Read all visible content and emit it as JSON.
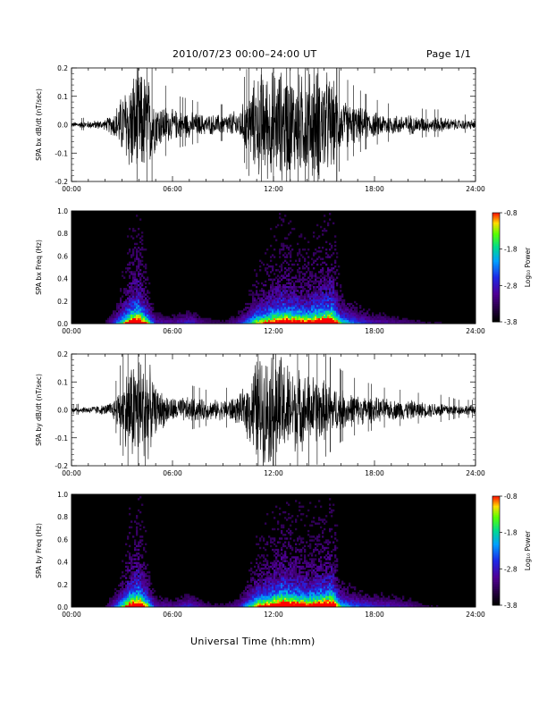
{
  "header": {
    "title": "2010/07/23  00:00–24:00 UT",
    "page": "Page 1/1"
  },
  "x_axis_title": "Universal Time (hh:mm)",
  "chart_data": [
    {
      "type": "line",
      "ylabel": "SPA bx dB/dt (nT/sec)",
      "xlim": [
        0,
        24
      ],
      "ylim": [
        -0.2,
        0.2
      ],
      "x_ticks": [
        "00:00",
        "06:00",
        "12:00",
        "18:00",
        "24:00"
      ],
      "y_ticks": [
        "-0.2",
        "-0.1",
        "0.0",
        "0.1",
        "0.2"
      ],
      "y_tick_values": [
        -0.2,
        -0.1,
        0.0,
        0.1,
        0.2
      ],
      "series": [
        {
          "x": [
            0,
            1,
            2,
            2.5,
            3,
            3.5,
            4,
            4.5,
            5,
            6,
            7,
            8,
            9,
            10,
            10.5,
            11,
            12,
            12.5,
            13,
            14,
            14.5,
            15,
            15.5,
            16,
            17,
            18,
            19,
            20,
            21,
            22,
            23,
            24
          ],
          "amplitude": [
            0.01,
            0.015,
            0.02,
            0.05,
            0.12,
            0.2,
            0.22,
            0.2,
            0.1,
            0.06,
            0.05,
            0.04,
            0.04,
            0.06,
            0.12,
            0.2,
            0.22,
            0.22,
            0.2,
            0.2,
            0.22,
            0.22,
            0.18,
            0.1,
            0.07,
            0.05,
            0.04,
            0.04,
            0.03,
            0.03,
            0.02,
            0.02
          ]
        }
      ]
    },
    {
      "type": "heatmap",
      "ylabel": "SPA bx Freq (Hz)",
      "xlim": [
        0,
        24
      ],
      "ylim": [
        0,
        1.0
      ],
      "x_ticks": [
        "00:00",
        "06:00",
        "12:00",
        "18:00",
        "24:00"
      ],
      "y_ticks": [
        "0.0",
        "0.2",
        "0.4",
        "0.6",
        "0.8",
        "1.0"
      ],
      "y_tick_values": [
        0,
        0.2,
        0.4,
        0.6,
        0.8,
        1.0
      ],
      "colorbar": {
        "label": "Log₁₀ Power",
        "ticks": [
          "-0.8",
          "-1.8",
          "-2.8",
          "-3.8"
        ],
        "tick_values": [
          -0.8,
          -1.8,
          -2.8,
          -3.8
        ],
        "range": [
          -3.8,
          -0.8
        ]
      },
      "activity": {
        "x": [
          0,
          2,
          2.5,
          3,
          3.5,
          4,
          4.5,
          5,
          6,
          7,
          8,
          9,
          10,
          10.5,
          11,
          12,
          12.5,
          13,
          14,
          15,
          15.5,
          16,
          17,
          18,
          19,
          20,
          21,
          22,
          23,
          24
        ],
        "level": [
          0.1,
          0.12,
          0.35,
          0.6,
          0.9,
          1.0,
          0.7,
          0.3,
          0.25,
          0.35,
          0.2,
          0.15,
          0.3,
          0.5,
          0.7,
          0.85,
          0.95,
          0.9,
          0.85,
          0.95,
          1.0,
          0.6,
          0.4,
          0.3,
          0.25,
          0.2,
          0.15,
          0.12,
          0.1,
          0.1
        ]
      }
    },
    {
      "type": "line",
      "ylabel": "SPA by dB/dt (nT/sec)",
      "xlim": [
        0,
        24
      ],
      "ylim": [
        -0.2,
        0.2
      ],
      "x_ticks": [
        "00:00",
        "06:00",
        "12:00",
        "18:00",
        "24:00"
      ],
      "y_ticks": [
        "-0.2",
        "-0.1",
        "0.0",
        "0.1",
        "0.2"
      ],
      "y_tick_values": [
        -0.2,
        -0.1,
        0.0,
        0.1,
        0.2
      ],
      "series": [
        {
          "x": [
            0,
            1,
            2,
            2.5,
            3,
            3.5,
            4,
            4.5,
            5,
            6,
            7,
            8,
            9,
            10,
            10.5,
            11,
            11.5,
            12,
            12.5,
            13,
            14,
            14.5,
            15,
            15.5,
            16,
            17,
            18,
            19,
            20,
            21,
            22,
            23,
            24
          ],
          "amplitude": [
            0.01,
            0.015,
            0.02,
            0.04,
            0.1,
            0.2,
            0.22,
            0.2,
            0.09,
            0.05,
            0.05,
            0.04,
            0.04,
            0.06,
            0.12,
            0.22,
            0.22,
            0.22,
            0.22,
            0.18,
            0.14,
            0.14,
            0.12,
            0.1,
            0.08,
            0.06,
            0.05,
            0.04,
            0.04,
            0.03,
            0.03,
            0.02,
            0.02
          ]
        }
      ]
    },
    {
      "type": "heatmap",
      "ylabel": "SPA by Freq (Hz)",
      "xlim": [
        0,
        24
      ],
      "ylim": [
        0,
        1.0
      ],
      "x_ticks": [
        "00:00",
        "06:00",
        "12:00",
        "18:00",
        "24:00"
      ],
      "y_ticks": [
        "0.0",
        "0.2",
        "0.4",
        "0.6",
        "0.8",
        "1.0"
      ],
      "y_tick_values": [
        0,
        0.2,
        0.4,
        0.6,
        0.8,
        1.0
      ],
      "colorbar": {
        "label": "Log₁₀ Power",
        "ticks": [
          "-0.8",
          "-1.8",
          "-2.8",
          "-3.8"
        ],
        "tick_values": [
          -0.8,
          -1.8,
          -2.8,
          -3.8
        ],
        "range": [
          -3.8,
          -0.8
        ]
      },
      "activity": {
        "x": [
          0,
          2,
          2.5,
          3,
          3.5,
          4,
          4.5,
          5,
          6,
          7,
          8,
          9,
          10,
          10.5,
          11,
          12,
          12.5,
          13,
          14,
          15,
          15.5,
          16,
          17,
          18,
          19,
          20,
          21,
          22,
          23,
          24
        ],
        "level": [
          0.1,
          0.12,
          0.35,
          0.6,
          0.9,
          1.0,
          0.7,
          0.3,
          0.25,
          0.35,
          0.2,
          0.15,
          0.3,
          0.55,
          0.75,
          0.9,
          1.0,
          0.95,
          0.85,
          0.95,
          1.0,
          0.55,
          0.4,
          0.35,
          0.3,
          0.25,
          0.15,
          0.12,
          0.1,
          0.1
        ]
      }
    }
  ]
}
